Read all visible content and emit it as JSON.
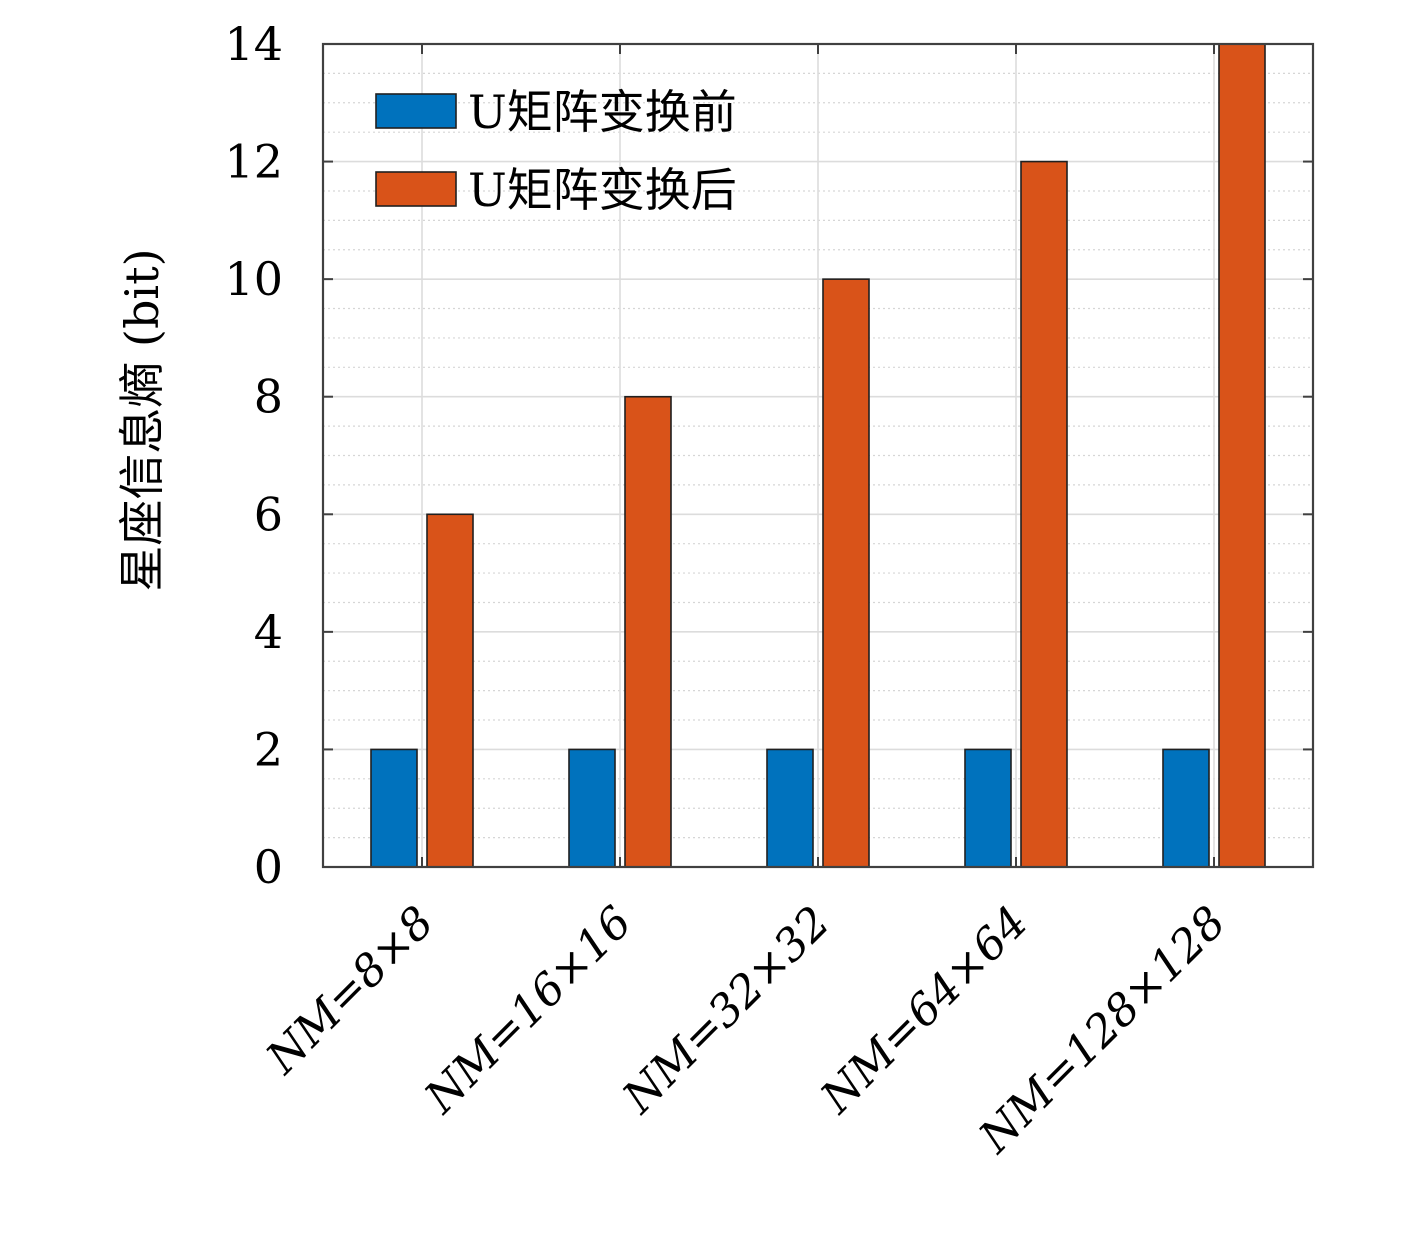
{
  "chart_data": {
    "type": "bar",
    "categories": [
      "NM=8×8",
      "NM=16×16",
      "NM=32×32",
      "NM=64×64",
      "NM=128×128"
    ],
    "series": [
      {
        "name": "U矩阵变换前",
        "color": "#0072BD",
        "values": [
          2,
          2,
          2,
          2,
          2
        ]
      },
      {
        "name": "U矩阵变换后",
        "color": "#D95319",
        "values": [
          6,
          8,
          10,
          12,
          14
        ]
      }
    ],
    "ylabel": "星座信息熵 (bit)",
    "ylim": [
      0,
      14
    ],
    "yticks": [
      0,
      2,
      4,
      6,
      8,
      10,
      12,
      14
    ],
    "grid": true,
    "minor_grid": true,
    "legend_position": "top-left"
  }
}
